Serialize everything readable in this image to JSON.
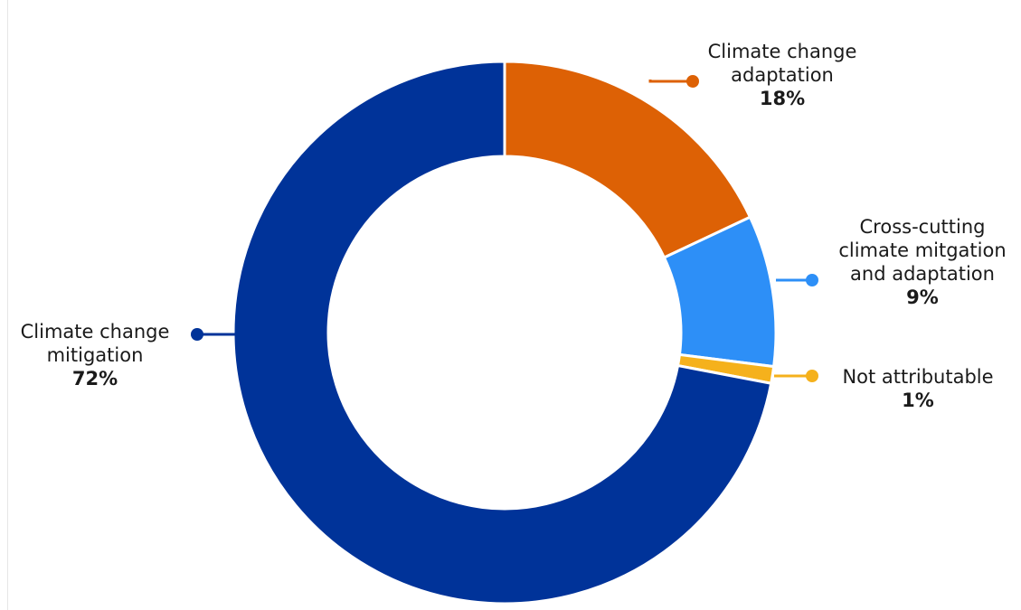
{
  "chart_data": {
    "type": "pie",
    "donut": true,
    "title": "",
    "categories": [
      "Climate change adaptation",
      "Cross-cutting climate mitgation and adaptation",
      "Not attributable",
      "Climate change mitigation"
    ],
    "values": [
      18,
      9,
      1,
      72
    ],
    "colors": [
      "#DD6105",
      "#2D8FF7",
      "#F5B11C",
      "#003399"
    ],
    "legend": "none",
    "labels": [
      {
        "lines": [
          "Climate change",
          "adaptation"
        ],
        "value_text": "18%",
        "align": "center"
      },
      {
        "lines": [
          "Cross-cutting",
          "climate mitgation",
          "and adaptation"
        ],
        "value_text": "9%",
        "align": "center"
      },
      {
        "lines": [
          "Not attributable"
        ],
        "value_text": "1%",
        "align": "center"
      },
      {
        "lines": [
          "Climate change",
          "mitigation"
        ],
        "value_text": "72%",
        "align": "center"
      }
    ]
  }
}
